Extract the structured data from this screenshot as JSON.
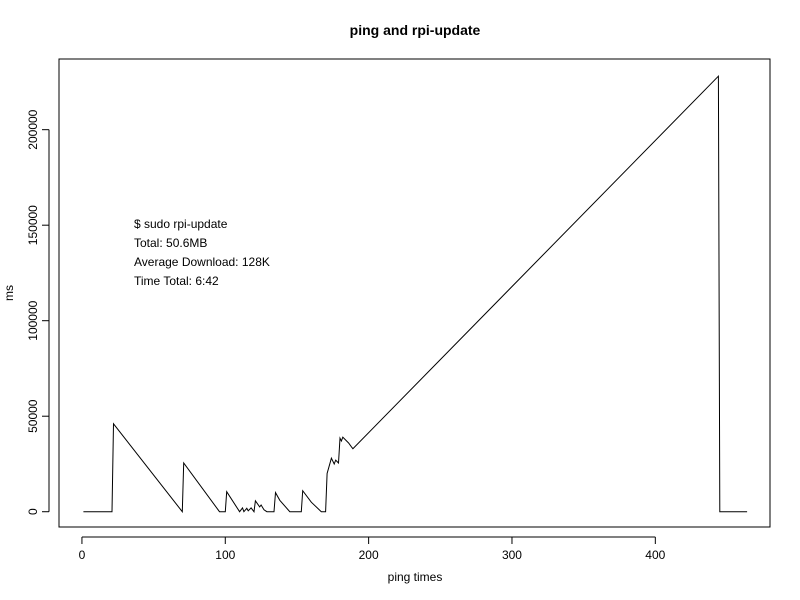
{
  "chart_data": {
    "type": "line",
    "title": "ping and rpi-update",
    "xlabel": "ping times",
    "ylabel": "ms",
    "xlim": [
      -16,
      480
    ],
    "ylim": [
      -8000,
      237000
    ],
    "x_ticks": [
      0,
      100,
      200,
      300,
      400
    ],
    "y_ticks": [
      0,
      50000,
      100000,
      150000,
      200000
    ],
    "grid": false,
    "legend": "none",
    "annotation": [
      "$ sudo rpi-update",
      "Total: 50.6MB",
      "Average Download: 128K",
      "Time Total: 6:42"
    ],
    "series": [
      {
        "x": [
          1,
          21,
          22,
          70,
          71,
          96,
          100,
          101,
          110,
          112,
          113,
          115,
          116,
          118,
          120,
          121,
          124,
          125,
          127,
          129,
          130,
          134,
          135,
          138,
          145,
          150,
          153,
          154,
          160,
          167,
          170,
          171,
          174,
          176,
          177,
          179,
          180,
          181,
          182,
          186,
          188,
          189,
          444,
          445,
          464
        ],
        "y": [
          0,
          0,
          46000,
          0,
          25500,
          0,
          0,
          10500,
          0,
          2000,
          0,
          1800,
          500,
          2000,
          0,
          5700,
          2500,
          3500,
          1000,
          0,
          0,
          0,
          10000,
          6000,
          0,
          0,
          0,
          11000,
          5000,
          0,
          0,
          20000,
          28000,
          25000,
          27000,
          25500,
          38500,
          37000,
          39000,
          36000,
          34000,
          33000,
          228000,
          0,
          0
        ]
      }
    ]
  }
}
